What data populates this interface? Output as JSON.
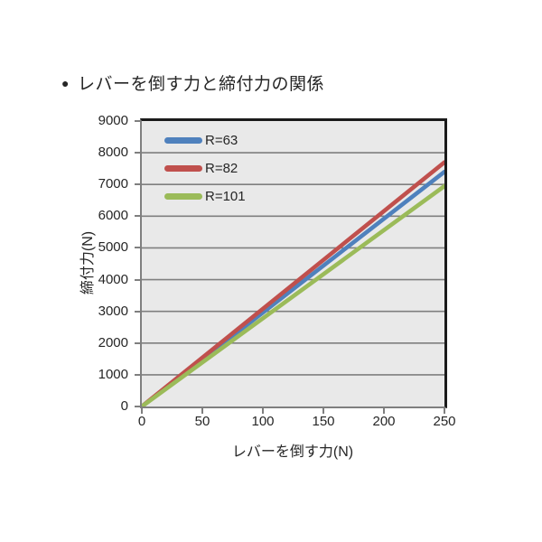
{
  "title": {
    "bullet": "●",
    "text": "レバーを倒す力と締付力の関係"
  },
  "chart_data": {
    "type": "line",
    "title": "レバーを倒す力と締付力の関係",
    "xlabel": "レバーを倒す力(N)",
    "ylabel": "締付力(N)",
    "xlim": [
      0,
      250
    ],
    "ylim": [
      0,
      9000
    ],
    "x_ticks": [
      0,
      50,
      100,
      150,
      200,
      250
    ],
    "y_ticks": [
      0,
      1000,
      2000,
      3000,
      4000,
      5000,
      6000,
      7000,
      8000,
      9000
    ],
    "x": [
      0,
      250
    ],
    "series": [
      {
        "name": "R=63",
        "color": "#4F81BD",
        "values": [
          0,
          7400
        ]
      },
      {
        "name": "R=82",
        "color": "#C0504D",
        "values": [
          0,
          7700
        ]
      },
      {
        "name": "R=101",
        "color": "#9BBB59",
        "values": [
          0,
          6950
        ]
      }
    ],
    "grid": "horizontal",
    "legend_position": "top-left-inside",
    "colors": {
      "plot_bg": "#e9e9e9",
      "grid": "#7f7f7f",
      "axis": "#7f7f7f",
      "frame": "#1a1a1a",
      "text": "#262626"
    }
  }
}
